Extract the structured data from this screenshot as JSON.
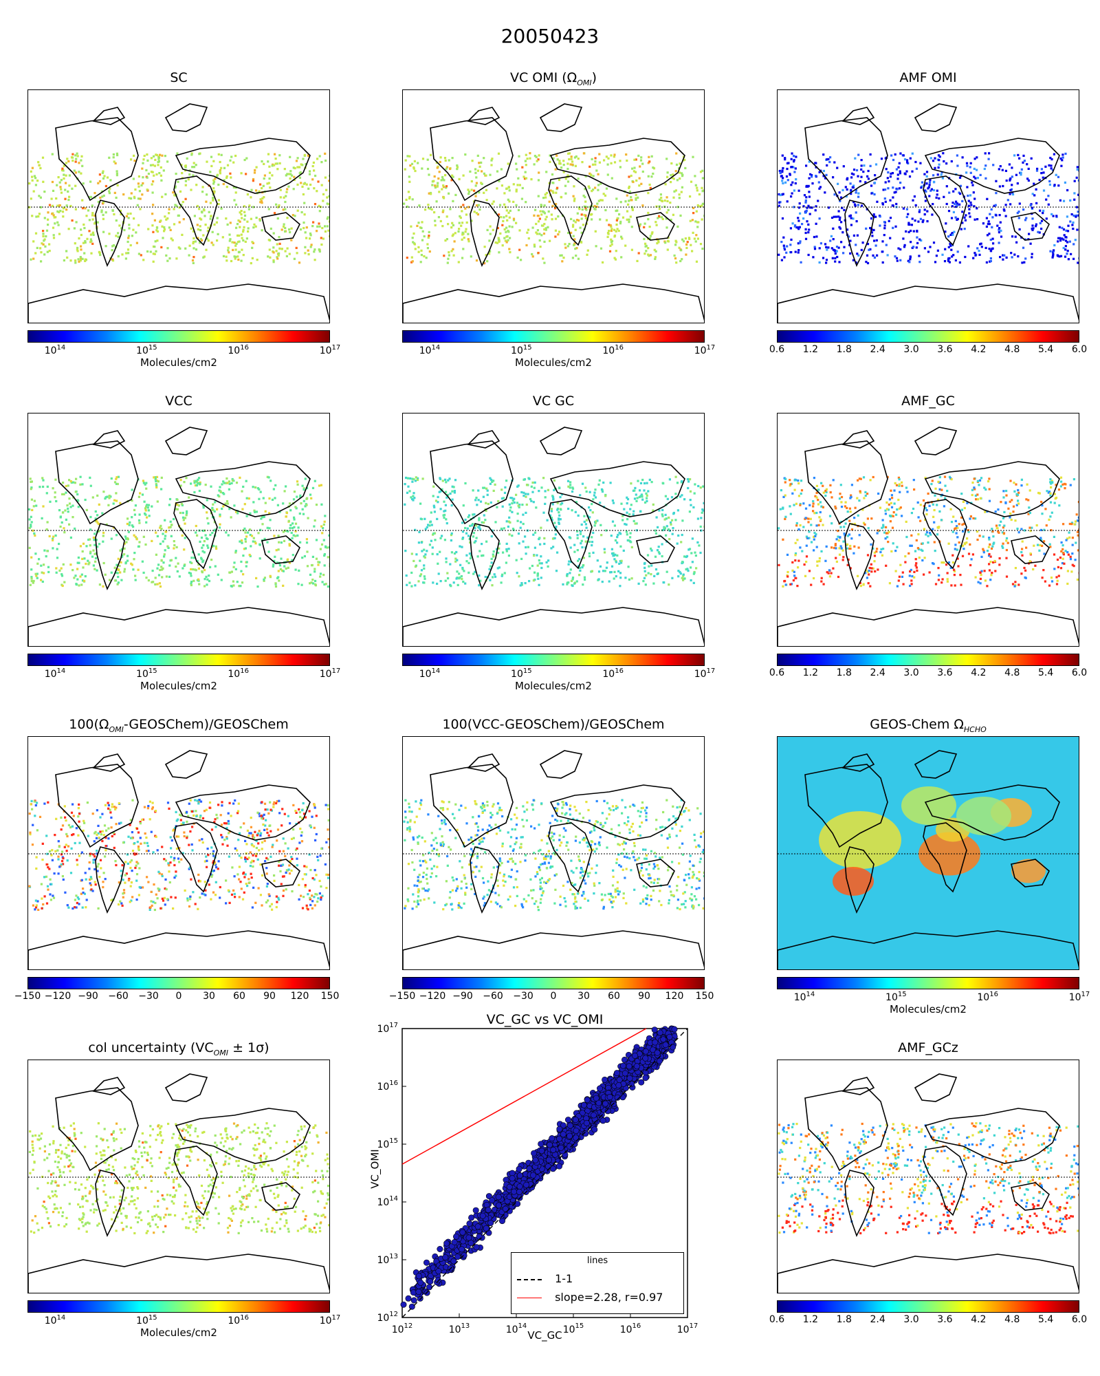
{
  "suptitle": "20050423",
  "colors": {
    "satellite_swath_fill": [
      "#9ee86a",
      "#e6e23a",
      "#f2b431",
      "#3fd6d0"
    ],
    "coastline": "#000000",
    "scatter_point_fill": "#1a1ab8",
    "line_1to1": "#000000",
    "line_fit": "#ff0000"
  },
  "colorbar_scales": {
    "log_molecules": {
      "ticks": [
        "10",
        "10",
        "10",
        "10"
      ],
      "exponents": [
        "14",
        "15",
        "16",
        "17"
      ],
      "label": "Molecules/cm2"
    },
    "amf": {
      "ticks": [
        "0.6",
        "1.2",
        "1.8",
        "2.4",
        "3.0",
        "3.6",
        "4.2",
        "4.8",
        "5.4",
        "6.0"
      ]
    },
    "percent": {
      "ticks": [
        "−150",
        "−120",
        "−90",
        "−60",
        "−30",
        "0",
        "30",
        "60",
        "90",
        "120",
        "150"
      ]
    }
  },
  "panels": [
    {
      "id": "sc",
      "title": "SC",
      "colorbar": "log_molecules"
    },
    {
      "id": "vc-omi",
      "title": "VC OMI (Ω",
      "title_sub": "OMI",
      "title_end": ")",
      "colorbar": "log_molecules"
    },
    {
      "id": "amf-omi",
      "title": "AMF OMI",
      "colorbar": "amf"
    },
    {
      "id": "vcc",
      "title": "VCC",
      "colorbar": "log_molecules"
    },
    {
      "id": "vc-gc",
      "title": "VC GC",
      "colorbar": "log_molecules"
    },
    {
      "id": "amf-gc",
      "title": "AMF_GC",
      "colorbar": "amf"
    },
    {
      "id": "pct-omi",
      "title": "100(Ω",
      "title_sub": "OMI",
      "title_end": "-GEOSChem)/GEOSChem",
      "colorbar": "percent"
    },
    {
      "id": "pct-vcc",
      "title": "100(VCC-GEOSChem)/GEOSChem",
      "colorbar": "percent"
    },
    {
      "id": "geos-chem",
      "title": "GEOS-Chem Ω",
      "title_sub": "HCHO",
      "title_end": "",
      "colorbar": "log_molecules"
    },
    {
      "id": "col-unc",
      "title": "col uncertainty (VC",
      "title_sub": "OMI",
      "title_end": " ± 1σ)",
      "colorbar": "log_molecules"
    },
    {
      "id": "amf-gcz",
      "title": "AMF_GCz",
      "colorbar": "amf"
    }
  ],
  "chart_data": {
    "type": "scatter",
    "title": "VC_GC vs VC_OMI",
    "xlabel": "VC_GC",
    "ylabel": "VC_OMI",
    "xscale": "log",
    "yscale": "log",
    "xlim": [
      1000000000000.0,
      1e+17
    ],
    "ylim": [
      1000000000000.0,
      1e+17
    ],
    "xtick_base": [
      "10",
      "10",
      "10",
      "10",
      "10",
      "10"
    ],
    "xtick_exp": [
      "12",
      "13",
      "14",
      "15",
      "16",
      "17"
    ],
    "legend_title": "lines",
    "legend_position": "lower right",
    "series": [
      {
        "name": "1-1",
        "kind": "line",
        "style": "dashed",
        "points": [
          [
            1000000000000.0,
            1000000000000.0
          ],
          [
            1e+17,
            1e+17
          ]
        ]
      },
      {
        "name": "slope=2.28, r=0.97",
        "kind": "line",
        "style": "solid",
        "points": [
          [
            1000000000000.0,
            450000000000000.0
          ],
          [
            1e+17,
            2.5e+17
          ]
        ]
      }
    ],
    "scatter_trend_approx": {
      "x_range": [
        1000000000000.0,
        6e+16
      ],
      "y_over_x_ratio_median": 1.7,
      "scatter_log_sigma": 0.18
    }
  }
}
